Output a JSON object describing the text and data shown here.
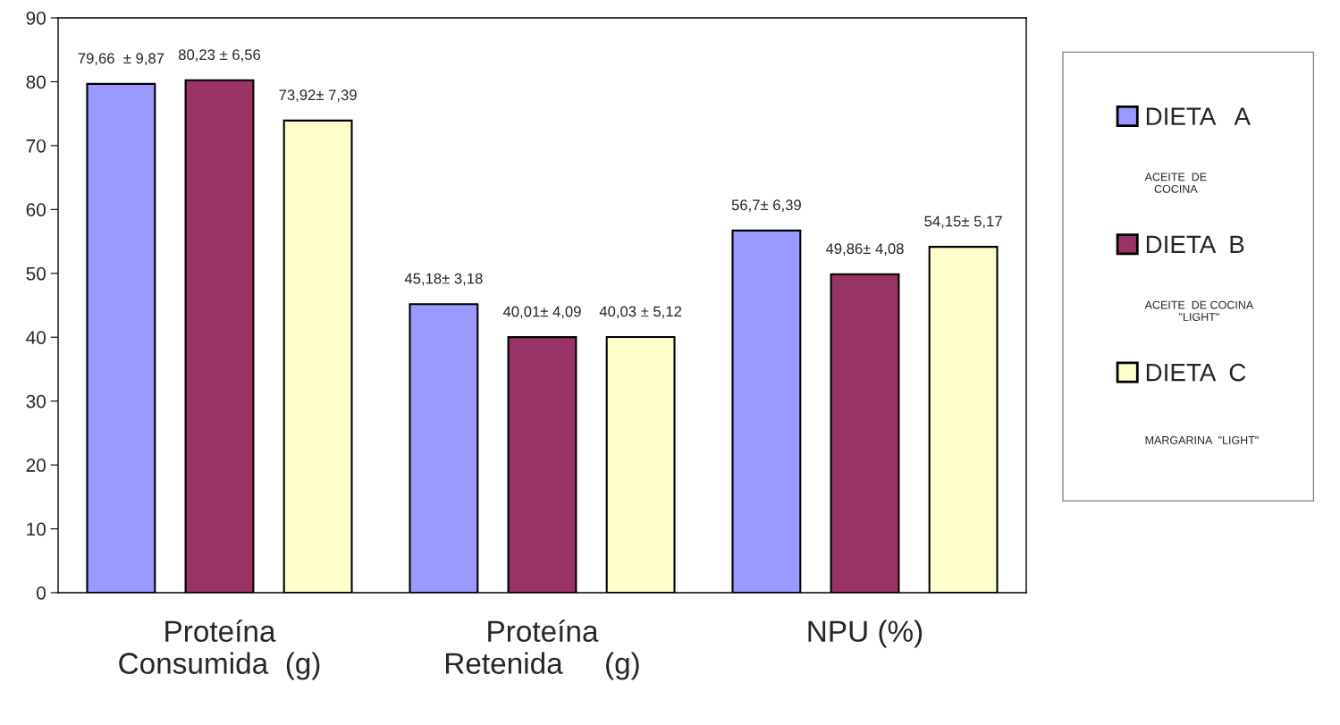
{
  "chart_data": {
    "type": "bar",
    "categories": [
      "Proteína\nConsumida  (g)",
      "Proteína\nRetenida     (g)",
      "NPU (%)"
    ],
    "series": [
      {
        "name": "DIETA   A",
        "color": "#9999ff",
        "values": [
          79.66,
          45.18,
          56.7
        ],
        "value_labels": [
          "79,66  ± 9,87",
          "45,18± 3,18",
          "56,7± 6,39"
        ]
      },
      {
        "name": "DIETA  B",
        "color": "#993366",
        "values": [
          80.23,
          40.01,
          49.86
        ],
        "value_labels": [
          "80,23 ± 6,56",
          "40,01± 4,09",
          "49,86± 4,08"
        ]
      },
      {
        "name": "DIETA  C",
        "color": "#ffffcc",
        "values": [
          73.92,
          40.03,
          54.15
        ],
        "value_labels": [
          "73,92± 7,39",
          "40,03 ± 5,12",
          "54,15± 5,17"
        ]
      }
    ],
    "annotations": [
      "ACEITE  DE\nCOCINA",
      "ACEITE  DE COCINA\n\"LIGHT\"",
      "MARGARINA  \"LIGHT\""
    ],
    "ylim": [
      0,
      90
    ],
    "yticks": [
      0,
      10,
      20,
      30,
      40,
      50,
      60,
      70,
      80,
      90
    ],
    "grid": false,
    "legend": "right"
  }
}
